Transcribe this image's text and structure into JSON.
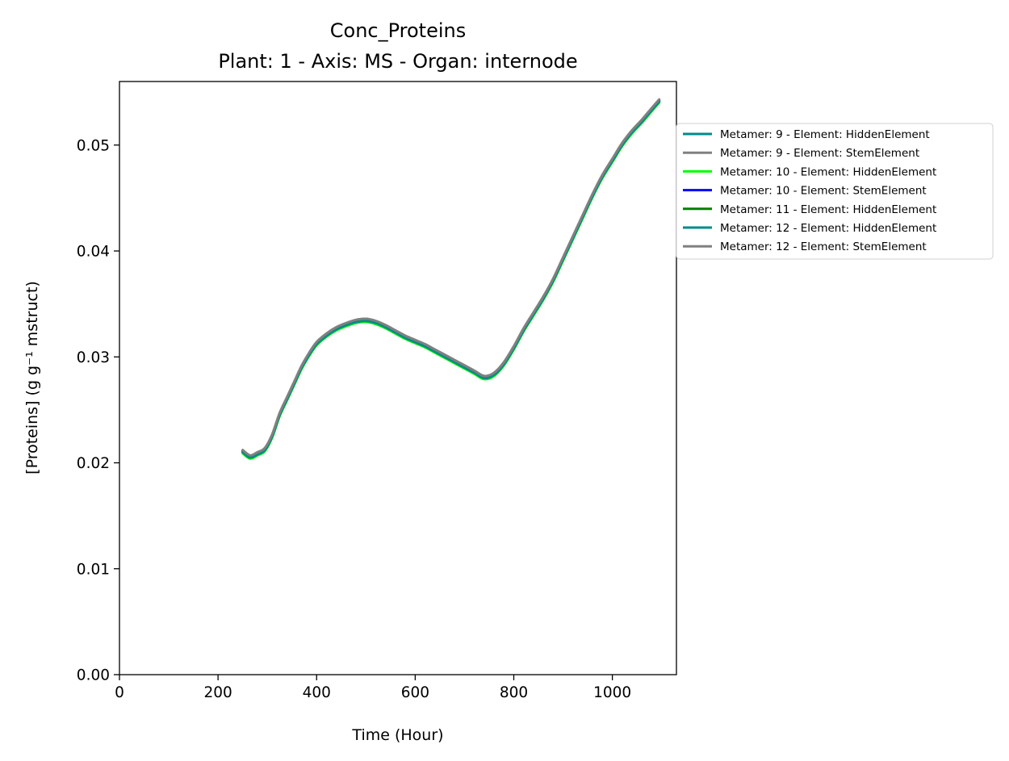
{
  "chart_data": {
    "type": "line",
    "title": "Conc_Proteins",
    "subtitle": "Plant: 1 - Axis: MS - Organ: internode",
    "xlabel": "Time (Hour)",
    "ylabel": "[Proteins] (g g⁻¹ mstruct)",
    "xlim": [
      0,
      1130
    ],
    "ylim": [
      0,
      0.056
    ],
    "xticks": [
      0,
      200,
      400,
      600,
      800,
      1000
    ],
    "yticks": [
      0.0,
      0.01,
      0.02,
      0.03,
      0.04,
      0.05
    ],
    "xtick_labels": [
      "0",
      "200",
      "400",
      "600",
      "800",
      "1000"
    ],
    "ytick_labels": [
      "0.00",
      "0.01",
      "0.02",
      "0.03",
      "0.04",
      "0.05"
    ],
    "grid": false,
    "legend_position": "right-outside",
    "x": [
      250,
      265,
      280,
      295,
      310,
      325,
      340,
      355,
      370,
      385,
      400,
      420,
      440,
      460,
      480,
      500,
      520,
      540,
      560,
      580,
      600,
      620,
      640,
      660,
      680,
      700,
      720,
      740,
      760,
      780,
      800,
      820,
      840,
      860,
      880,
      900,
      920,
      940,
      960,
      980,
      1000,
      1020,
      1040,
      1060,
      1080,
      1095
    ],
    "series": [
      {
        "name": "Metamer: 9 - Element: HiddenElement",
        "color": "#008b8b",
        "values": [
          0.021,
          0.0205,
          0.0208,
          0.0212,
          0.0225,
          0.0245,
          0.026,
          0.0275,
          0.029,
          0.0302,
          0.0312,
          0.032,
          0.0326,
          0.033,
          0.0333,
          0.0334,
          0.0332,
          0.0328,
          0.0323,
          0.0318,
          0.0314,
          0.031,
          0.0305,
          0.03,
          0.0295,
          0.029,
          0.0285,
          0.028,
          0.0283,
          0.0293,
          0.0308,
          0.0325,
          0.034,
          0.0355,
          0.0372,
          0.0392,
          0.0412,
          0.0432,
          0.0452,
          0.047,
          0.0485,
          0.05,
          0.0512,
          0.0522,
          0.0533,
          0.0541
        ]
      },
      {
        "name": "Metamer: 9 - Element: StemElement",
        "color": "#808080",
        "values": [
          0.0212,
          0.0207,
          0.021,
          0.0214,
          0.0227,
          0.0247,
          0.0262,
          0.0277,
          0.0292,
          0.0304,
          0.0314,
          0.0322,
          0.0328,
          0.0332,
          0.0335,
          0.0336,
          0.0334,
          0.033,
          0.0325,
          0.032,
          0.0316,
          0.0312,
          0.0307,
          0.0302,
          0.0297,
          0.0292,
          0.0287,
          0.0282,
          0.0285,
          0.0295,
          0.031,
          0.0327,
          0.0342,
          0.0357,
          0.0374,
          0.0394,
          0.0414,
          0.0434,
          0.0454,
          0.0472,
          0.0487,
          0.0502,
          0.0514,
          0.0524,
          0.0535,
          0.0543
        ]
      },
      {
        "name": "Metamer: 10 - Element: HiddenElement",
        "color": "#00ff00",
        "values": [
          0.0209,
          0.0204,
          0.0207,
          0.0211,
          0.0224,
          0.0244,
          0.0259,
          0.0274,
          0.0289,
          0.0301,
          0.0311,
          0.0319,
          0.0325,
          0.0329,
          0.0332,
          0.0333,
          0.0331,
          0.0327,
          0.0322,
          0.0317,
          0.0313,
          0.0309,
          0.0304,
          0.0299,
          0.0294,
          0.0289,
          0.0284,
          0.0279,
          0.0282,
          0.0292,
          0.0307,
          0.0324,
          0.0339,
          0.0354,
          0.0371,
          0.0391,
          0.0411,
          0.0431,
          0.0451,
          0.0469,
          0.0484,
          0.0499,
          0.0511,
          0.0521,
          0.0532,
          0.054
        ]
      },
      {
        "name": "Metamer: 10 - Element: StemElement",
        "color": "#0000ff",
        "values": [
          0.0211,
          0.0206,
          0.0209,
          0.0213,
          0.0226,
          0.0246,
          0.0261,
          0.0276,
          0.0291,
          0.0303,
          0.0313,
          0.0321,
          0.0327,
          0.0331,
          0.0334,
          0.0335,
          0.0333,
          0.0329,
          0.0324,
          0.0319,
          0.0315,
          0.0311,
          0.0306,
          0.0301,
          0.0296,
          0.0291,
          0.0286,
          0.0281,
          0.0284,
          0.0294,
          0.0309,
          0.0326,
          0.0341,
          0.0356,
          0.0373,
          0.0393,
          0.0413,
          0.0433,
          0.0453,
          0.0471,
          0.0486,
          0.0501,
          0.0513,
          0.0523,
          0.0534,
          0.0542
        ]
      },
      {
        "name": "Metamer: 11 - Element: HiddenElement",
        "color": "#008000",
        "values": [
          0.021,
          0.0205,
          0.0208,
          0.0212,
          0.0225,
          0.0245,
          0.026,
          0.0275,
          0.029,
          0.0302,
          0.0312,
          0.032,
          0.0326,
          0.033,
          0.0333,
          0.0334,
          0.0332,
          0.0328,
          0.0323,
          0.0318,
          0.0314,
          0.031,
          0.0305,
          0.03,
          0.0295,
          0.029,
          0.0285,
          0.028,
          0.0283,
          0.0293,
          0.0308,
          0.0325,
          0.034,
          0.0355,
          0.0372,
          0.0392,
          0.0412,
          0.0432,
          0.0452,
          0.047,
          0.0485,
          0.05,
          0.0512,
          0.0522,
          0.0533,
          0.0541
        ]
      },
      {
        "name": "Metamer: 12 - Element: HiddenElement",
        "color": "#008b8b",
        "values": [
          0.021,
          0.0205,
          0.0208,
          0.0212,
          0.0225,
          0.0245,
          0.026,
          0.0275,
          0.029,
          0.0302,
          0.0312,
          0.032,
          0.0326,
          0.033,
          0.0333,
          0.0334,
          0.0332,
          0.0328,
          0.0323,
          0.0318,
          0.0314,
          0.031,
          0.0305,
          0.03,
          0.0295,
          0.029,
          0.0285,
          0.028,
          0.0283,
          0.0293,
          0.0308,
          0.0325,
          0.034,
          0.0355,
          0.0372,
          0.0392,
          0.0412,
          0.0432,
          0.0452,
          0.047,
          0.0485,
          0.05,
          0.0512,
          0.0522,
          0.0533,
          0.0541
        ]
      },
      {
        "name": "Metamer: 12 - Element: StemElement",
        "color": "#808080",
        "values": [
          0.0212,
          0.0207,
          0.021,
          0.0214,
          0.0227,
          0.0247,
          0.0262,
          0.0277,
          0.0292,
          0.0304,
          0.0314,
          0.0322,
          0.0328,
          0.0332,
          0.0335,
          0.0336,
          0.0334,
          0.033,
          0.0325,
          0.032,
          0.0316,
          0.0312,
          0.0307,
          0.0302,
          0.0297,
          0.0292,
          0.0287,
          0.0282,
          0.0285,
          0.0295,
          0.031,
          0.0327,
          0.0342,
          0.0357,
          0.0374,
          0.0394,
          0.0414,
          0.0434,
          0.0454,
          0.0472,
          0.0487,
          0.0502,
          0.0514,
          0.0524,
          0.0535,
          0.0543
        ]
      }
    ]
  }
}
